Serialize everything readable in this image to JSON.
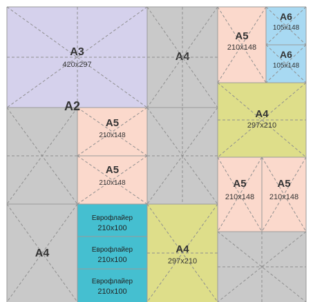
{
  "colors": {
    "gray": "#c9c9c9",
    "lavender": "#d5d1ec",
    "peach": "#fbd9cc",
    "lightblue": "#a8d9f2",
    "olive": "#dede8a",
    "teal": "#45bfd0",
    "line": "#8f8f8f"
  },
  "sheets": {
    "a3": {
      "name": "A3",
      "dim": "420x297"
    },
    "a2": {
      "name": "A2"
    },
    "a4_top": {
      "name": "A4"
    },
    "a5_top": {
      "name": "A5",
      "dim": "210x148"
    },
    "a6_top": {
      "name": "A6",
      "dim": "105x148"
    },
    "a6_bottom": {
      "name": "A6",
      "dim": "105x148"
    },
    "a4_right": {
      "name": "A4",
      "dim": "297x210"
    },
    "a5_mid_1": {
      "name": "A5",
      "dim": "210x148"
    },
    "a5_mid_2": {
      "name": "A5",
      "dim": "210x148"
    },
    "a5_right_1": {
      "name": "A5",
      "dim": "210x148"
    },
    "a5_right_2": {
      "name": "A5",
      "dim": "210x148"
    },
    "a4_bottom_left": {
      "name": "A4"
    },
    "euro_1": {
      "name": "Еврофлайер",
      "dim": "210x100"
    },
    "euro_2": {
      "name": "Еврофлайер",
      "dim": "210x100"
    },
    "euro_3": {
      "name": "Еврофлайер",
      "dim": "210x100"
    },
    "a4_bottom_mid": {
      "name": "A4",
      "dim": "297x210"
    }
  }
}
